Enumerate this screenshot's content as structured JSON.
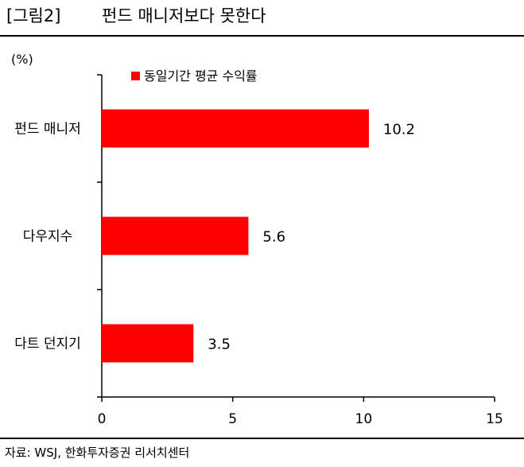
{
  "figure": {
    "tag": "[그림2]",
    "title": "펀드 매니저보다 못한다",
    "source": "자료: WSJ, 한화투자증권 리서치센터"
  },
  "chart_data": {
    "type": "bar",
    "orientation": "horizontal",
    "unit_label": "(%)",
    "categories": [
      "펀드 매니저",
      "다우지수",
      "다트 던지기"
    ],
    "series": [
      {
        "name": "동일기간  평균  수익률",
        "values": [
          10.2,
          5.6,
          3.5
        ],
        "color": "#ff0000"
      }
    ],
    "data_labels": [
      "10.2",
      "5.6",
      "3.5"
    ],
    "xlim": [
      0,
      15
    ],
    "xticks": [
      0,
      5,
      10,
      15
    ],
    "legend_position": "top-left",
    "grid": false
  }
}
